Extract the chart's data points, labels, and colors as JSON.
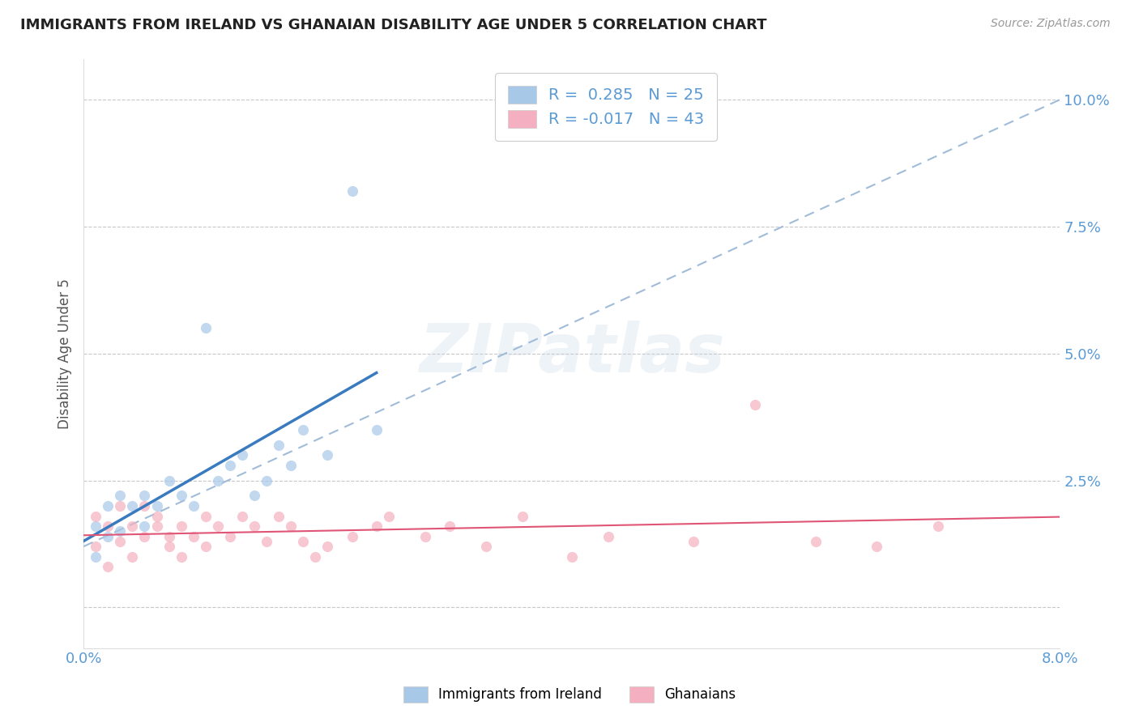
{
  "title": "IMMIGRANTS FROM IRELAND VS GHANAIAN DISABILITY AGE UNDER 5 CORRELATION CHART",
  "source": "Source: ZipAtlas.com",
  "ylabel": "Disability Age Under 5",
  "xlim": [
    0.0,
    0.08
  ],
  "ylim": [
    -0.008,
    0.108
  ],
  "yticks": [
    0.0,
    0.025,
    0.05,
    0.075,
    0.1
  ],
  "ytick_labels": [
    "",
    "2.5%",
    "5.0%",
    "7.5%",
    "10.0%"
  ],
  "xticks": [
    0.0,
    0.02,
    0.04,
    0.06,
    0.08
  ],
  "xtick_labels": [
    "0.0%",
    "",
    "",
    "",
    "8.0%"
  ],
  "ireland_R": 0.285,
  "ireland_N": 25,
  "ghana_R": -0.017,
  "ghana_N": 43,
  "ireland_color": "#a8c8e8",
  "ghana_color": "#f4b0c0",
  "ireland_line_color": "#3a7abf",
  "ghana_line_color": "#e05575",
  "dashed_line_color": "#a0bcd8",
  "background_color": "#ffffff",
  "grid_color": "#c8c8c8",
  "title_color": "#222222",
  "tick_color": "#5b9bd5",
  "watermark": "ZIPatlas",
  "ireland_scatter_x": [
    0.001,
    0.001,
    0.002,
    0.002,
    0.003,
    0.003,
    0.004,
    0.005,
    0.005,
    0.006,
    0.007,
    0.008,
    0.009,
    0.01,
    0.011,
    0.012,
    0.013,
    0.014,
    0.015,
    0.016,
    0.017,
    0.018,
    0.02,
    0.022,
    0.024
  ],
  "ireland_scatter_y": [
    0.01,
    0.016,
    0.014,
    0.02,
    0.015,
    0.022,
    0.02,
    0.016,
    0.022,
    0.02,
    0.025,
    0.022,
    0.02,
    0.055,
    0.025,
    0.028,
    0.03,
    0.022,
    0.025,
    0.032,
    0.028,
    0.035,
    0.03,
    0.082,
    0.035
  ],
  "ghana_scatter_x": [
    0.001,
    0.001,
    0.002,
    0.002,
    0.003,
    0.003,
    0.004,
    0.004,
    0.005,
    0.005,
    0.006,
    0.006,
    0.007,
    0.007,
    0.008,
    0.008,
    0.009,
    0.01,
    0.01,
    0.011,
    0.012,
    0.013,
    0.014,
    0.015,
    0.016,
    0.017,
    0.018,
    0.019,
    0.02,
    0.022,
    0.024,
    0.025,
    0.028,
    0.03,
    0.033,
    0.036,
    0.04,
    0.043,
    0.05,
    0.055,
    0.06,
    0.065,
    0.07
  ],
  "ghana_scatter_y": [
    0.012,
    0.018,
    0.016,
    0.008,
    0.013,
    0.02,
    0.016,
    0.01,
    0.014,
    0.02,
    0.018,
    0.016,
    0.014,
    0.012,
    0.016,
    0.01,
    0.014,
    0.018,
    0.012,
    0.016,
    0.014,
    0.018,
    0.016,
    0.013,
    0.018,
    0.016,
    0.013,
    0.01,
    0.012,
    0.014,
    0.016,
    0.018,
    0.014,
    0.016,
    0.012,
    0.018,
    0.01,
    0.014,
    0.013,
    0.04,
    0.013,
    0.012,
    0.016
  ],
  "legend_text_color": "#333333",
  "legend_value_color": "#5b9bd5"
}
